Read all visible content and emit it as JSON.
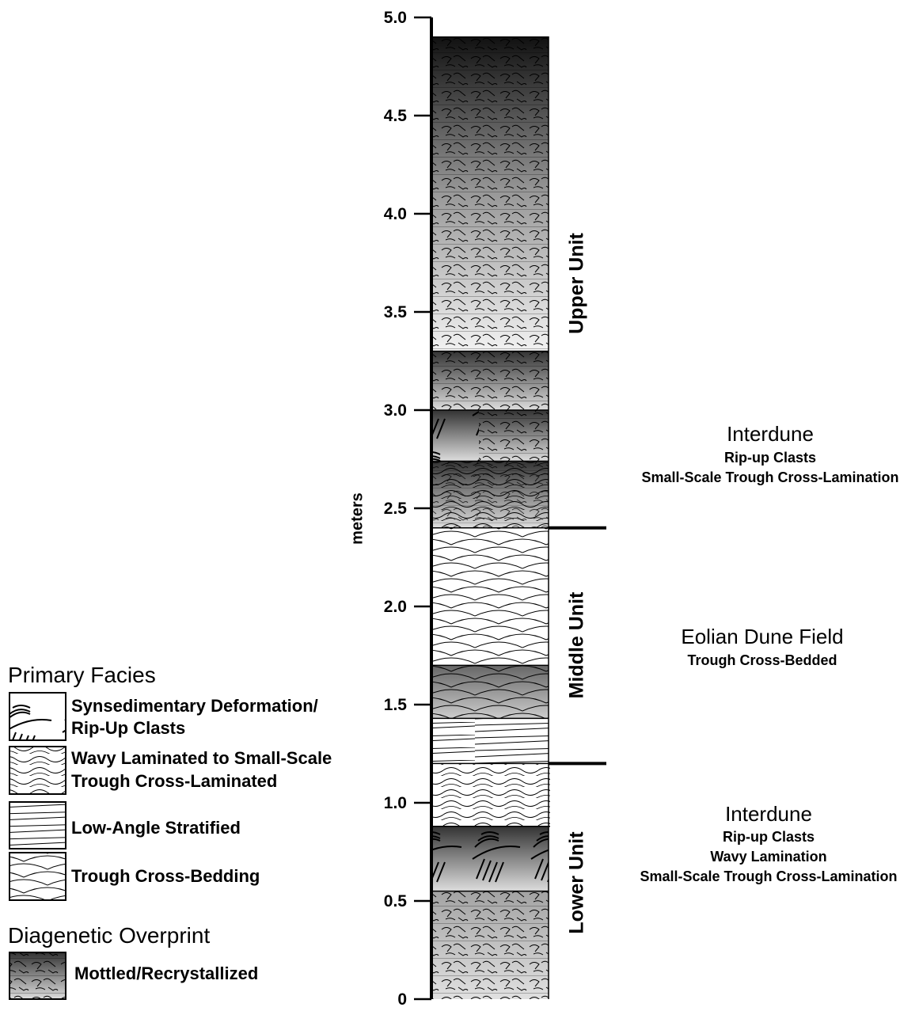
{
  "axis": {
    "label": "meters",
    "ylim": [
      0,
      5
    ],
    "yticks": [
      0,
      0.5,
      {
        "value": 1,
        "label": "1.0"
      },
      1.5,
      {
        "value": 2,
        "label": "2.0"
      },
      2.5,
      {
        "value": 3,
        "label": "3.0"
      },
      3.5,
      {
        "value": 4,
        "label": "4.0"
      },
      4.5,
      {
        "value": 5,
        "label": "5.0"
      }
    ]
  },
  "units": [
    "Upper Unit",
    "Middle Unit",
    "Lower Unit"
  ],
  "unit_boundaries": [
    2.4,
    1.2
  ],
  "interpretations": [
    {
      "title": "Interdune",
      "lines": [
        "Rip-up Clasts",
        "Small-Scale Trough Cross-Lamination"
      ]
    },
    {
      "title": "Eolian Dune Field",
      "lines": [
        "Trough Cross-Bedded"
      ]
    },
    {
      "title": "Interdune",
      "lines": [
        "Rip-up Clasts",
        "Wavy Lamination",
        "Small-Scale Trough Cross-Lamination"
      ]
    }
  ],
  "legend": {
    "primary_title": "Primary Facies",
    "primary": [
      [
        "Synsedimentary Deformation/",
        "Rip-Up Clasts"
      ],
      [
        "Wavy Laminated to Small-Scale",
        "Trough Cross-Laminated"
      ],
      [
        "Low-Angle Stratified"
      ],
      [
        "Trough Cross-Bedding"
      ]
    ],
    "diagenetic_title": "Diagenetic Overprint",
    "diagenetic": [
      "Mottled/Recrystallized"
    ]
  }
}
